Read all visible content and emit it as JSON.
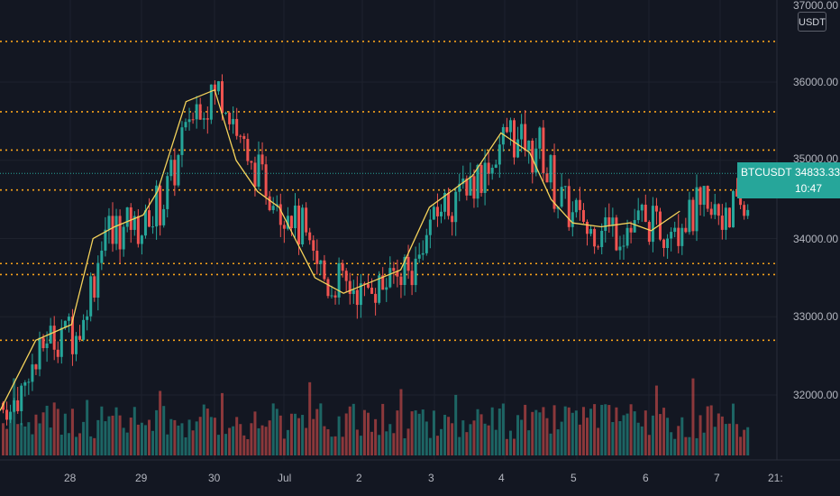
{
  "symbol": "BTCUSDT",
  "unit_label": "USDT",
  "current": {
    "price": "34833.33",
    "time": "10:47",
    "value": 34833.33
  },
  "colors": {
    "background": "#131722",
    "up": "#26a69a",
    "down": "#ef5350",
    "ma": "#f5d35b",
    "level": "#f7a21b",
    "grid": "#1e222d",
    "text": "#b2b5be"
  },
  "chart_data": {
    "type": "candlestick",
    "x_ticks": [
      "28",
      "29",
      "30",
      "Jul",
      "2",
      "3",
      "4",
      "5",
      "6",
      "7",
      "21:"
    ],
    "y_ticks": [
      "37000.00",
      "36000.00",
      "35000.00",
      "34000.00",
      "33000.00",
      "32000.00"
    ],
    "ylim": [
      31250,
      37000
    ],
    "horizontal_levels": [
      36520,
      35620,
      35130,
      34620,
      33680,
      33540,
      32700
    ],
    "moving_average": {
      "x": [
        0,
        0.5,
        1,
        1.3,
        1.6,
        2,
        2.2,
        2.6,
        3,
        3.3,
        3.6,
        3.9,
        4.4,
        4.8,
        5.2,
        5.6,
        6,
        6.3,
        6.6,
        7,
        7.4,
        7.7,
        8,
        8.4,
        8.8,
        9.1,
        9.5
      ],
      "y": [
        31800,
        32700,
        32900,
        34000,
        34150,
        34300,
        34600,
        35750,
        35900,
        35000,
        34600,
        34400,
        33500,
        33300,
        33450,
        33600,
        34400,
        34600,
        34800,
        35350,
        35100,
        34500,
        34200,
        34150,
        34200,
        34100,
        34350
      ]
    },
    "volume": {
      "level_description": "relative volume bars along bottom"
    }
  }
}
